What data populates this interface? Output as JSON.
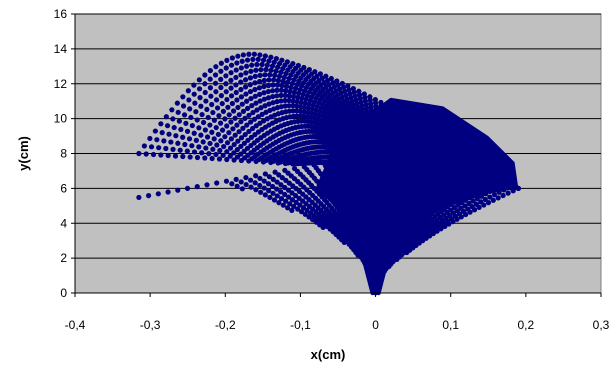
{
  "chart_data": {
    "type": "scatter",
    "xlabel": "x(cm)",
    "ylabel": "y(cm)",
    "xlim": [
      -0.4,
      0.3
    ],
    "ylim": [
      0,
      16
    ],
    "x_ticks": [
      -0.4,
      -0.3,
      -0.2,
      -0.1,
      0,
      0.1,
      0.2,
      0.3
    ],
    "x_tick_labels": [
      "-0,4",
      "-0,3",
      "-0,2",
      "-0,1",
      "0",
      "0,1",
      "0,2",
      "0,3"
    ],
    "y_ticks": [
      0,
      2,
      4,
      6,
      8,
      10,
      12,
      14,
      16
    ],
    "y_tick_labels": [
      "0",
      "2",
      "4",
      "6",
      "8",
      "10",
      "12",
      "14",
      "16"
    ],
    "grid": "horizontal",
    "legend": "none",
    "colors": {
      "plot_background": "#c0c0c0",
      "marker": "#000080",
      "gridline": "#000000"
    },
    "series": [
      {
        "description_shape": "fan of dense point arcs from origin",
        "boundary_x": [
          0.0,
          -0.02,
          -0.05,
          -0.1,
          -0.15,
          -0.2,
          -0.25,
          -0.3,
          -0.315,
          -0.3,
          -0.25,
          -0.2,
          -0.14,
          -0.05,
          0.05,
          0.12,
          0.16,
          0.185,
          0.19,
          0.17,
          0.12,
          0.07,
          0.03,
          0.01,
          0.0
        ],
        "boundary_y": [
          0.0,
          2.4,
          3.8,
          5.0,
          5.9,
          6.6,
          7.1,
          7.6,
          8.0,
          9.3,
          11.2,
          12.6,
          13.7,
          13.2,
          12.2,
          10.8,
          9.2,
          7.5,
          6.0,
          5.6,
          4.8,
          3.8,
          2.6,
          1.2,
          0.0
        ]
      }
    ]
  }
}
